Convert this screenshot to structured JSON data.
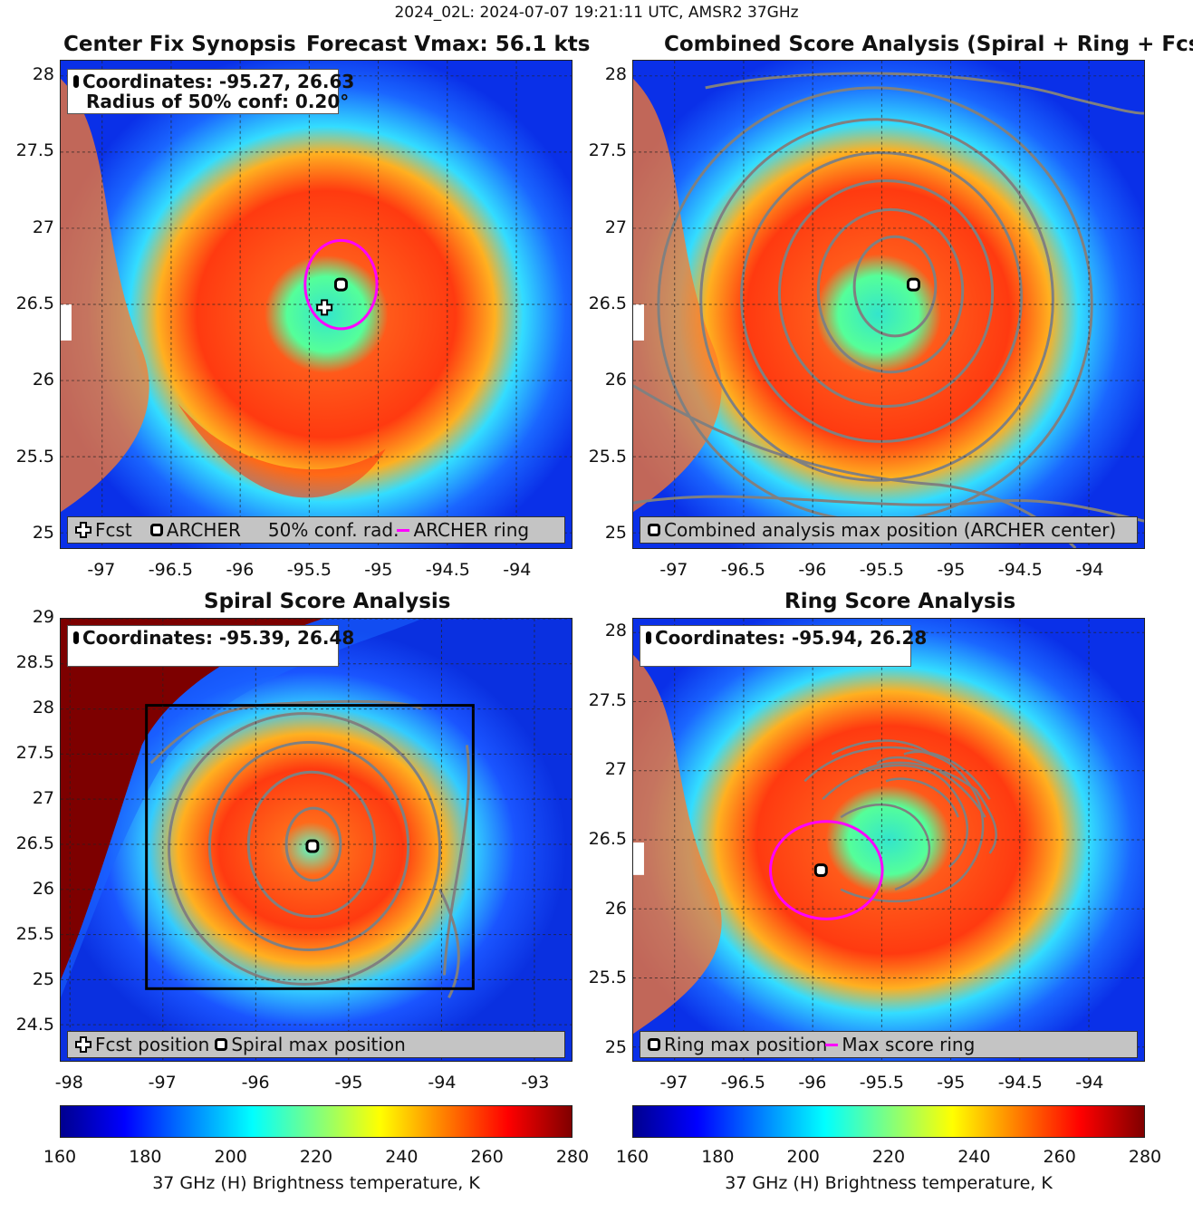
{
  "figure": {
    "suptitle": "2024_02L: 2024-07-07 19:21:11 UTC, AMSR2 37GHz"
  },
  "colormap": [
    "#00008f",
    "#0000ff",
    "#00ffff",
    "#ffff00",
    "#ff0000",
    "#800000"
  ],
  "panels": {
    "p1": {
      "title_left": "Center Fix Synopsis",
      "title_right": "Forecast Vmax: 56.1 kts",
      "info_line1": "Coordinates: -95.27, 26.63",
      "info_line2": "Radius of 50% conf: 0.20°",
      "legend": {
        "fcst": "Fcst",
        "archer": "ARCHER",
        "conf": "50% conf. rad.",
        "ring": "ARCHER ring"
      }
    },
    "p2": {
      "title": "Combined Score Analysis (Spiral + Ring + Fcst_Pe",
      "legend": {
        "max": "Combined analysis max position (ARCHER center)"
      }
    },
    "p3": {
      "title": "Spiral Score Analysis",
      "info_line1": "Coordinates: -95.39, 26.48",
      "legend": {
        "fcst": "Fcst position",
        "spiral": "Spiral max position"
      }
    },
    "p4": {
      "title": "Ring Score Analysis",
      "info_line1": "Coordinates: -95.94, 26.28",
      "legend": {
        "ring": "Ring max position",
        "score": "Max score ring"
      }
    }
  },
  "colorbar": {
    "ticks": [
      "160",
      "180",
      "200",
      "220",
      "240",
      "260",
      "280"
    ],
    "label": "37 GHz (H) Brightness temperature, K"
  },
  "chart_data": [
    {
      "type": "heatmap",
      "title": "Center Fix Synopsis",
      "subtitle": "Forecast Vmax: 56.1 kts",
      "xlim": [
        -97.3,
        -93.6
      ],
      "ylim": [
        24.9,
        28.1
      ],
      "xticks": [
        "-97",
        "-96.5",
        "-96",
        "-95.5",
        "-95",
        "-94.5",
        "-94"
      ],
      "yticks": [
        "28",
        "27.5",
        "27",
        "26.5",
        "26",
        "25.5",
        "25"
      ],
      "grid": true,
      "archer_center": {
        "lon": -95.27,
        "lat": 26.63
      },
      "forecast_center": {
        "lon": -95.39,
        "lat": 26.48
      },
      "conf_radius_deg": 0.2,
      "colorbar_range_K": [
        160,
        280
      ]
    },
    {
      "type": "heatmap",
      "title": "Combined Score Analysis (Spiral + Ring + Fcst_Pe",
      "xlim": [
        -97.3,
        -93.6
      ],
      "ylim": [
        24.9,
        28.1
      ],
      "xticks": [
        "-97",
        "-96.5",
        "-96",
        "-95.5",
        "-95",
        "-94.5",
        "-94"
      ],
      "yticks": [
        "28",
        "27.5",
        "27",
        "26.5",
        "26",
        "25.5",
        "25"
      ],
      "grid": true,
      "max_position": {
        "lon": -95.27,
        "lat": 26.63
      }
    },
    {
      "type": "heatmap",
      "title": "Spiral Score Analysis",
      "xlim": [
        -98.1,
        -92.6
      ],
      "ylim": [
        24.1,
        29.0
      ],
      "xticks": [
        "-98",
        "-97",
        "-96",
        "-95",
        "-94",
        "-93"
      ],
      "yticks": [
        "29",
        "28.5",
        "28",
        "27.5",
        "27",
        "26.5",
        "26",
        "25.5",
        "25",
        "24.5"
      ],
      "grid": true,
      "max_position": {
        "lon": -95.39,
        "lat": 26.48
      }
    },
    {
      "type": "heatmap",
      "title": "Ring Score Analysis",
      "xlim": [
        -97.3,
        -93.6
      ],
      "ylim": [
        24.9,
        28.1
      ],
      "xticks": [
        "-97",
        "-96.5",
        "-96",
        "-95.5",
        "-95",
        "-94.5",
        "-94"
      ],
      "yticks": [
        "28",
        "27.5",
        "27",
        "26.5",
        "26",
        "25.5",
        "25"
      ],
      "grid": true,
      "max_position": {
        "lon": -95.94,
        "lat": 26.28
      }
    }
  ]
}
